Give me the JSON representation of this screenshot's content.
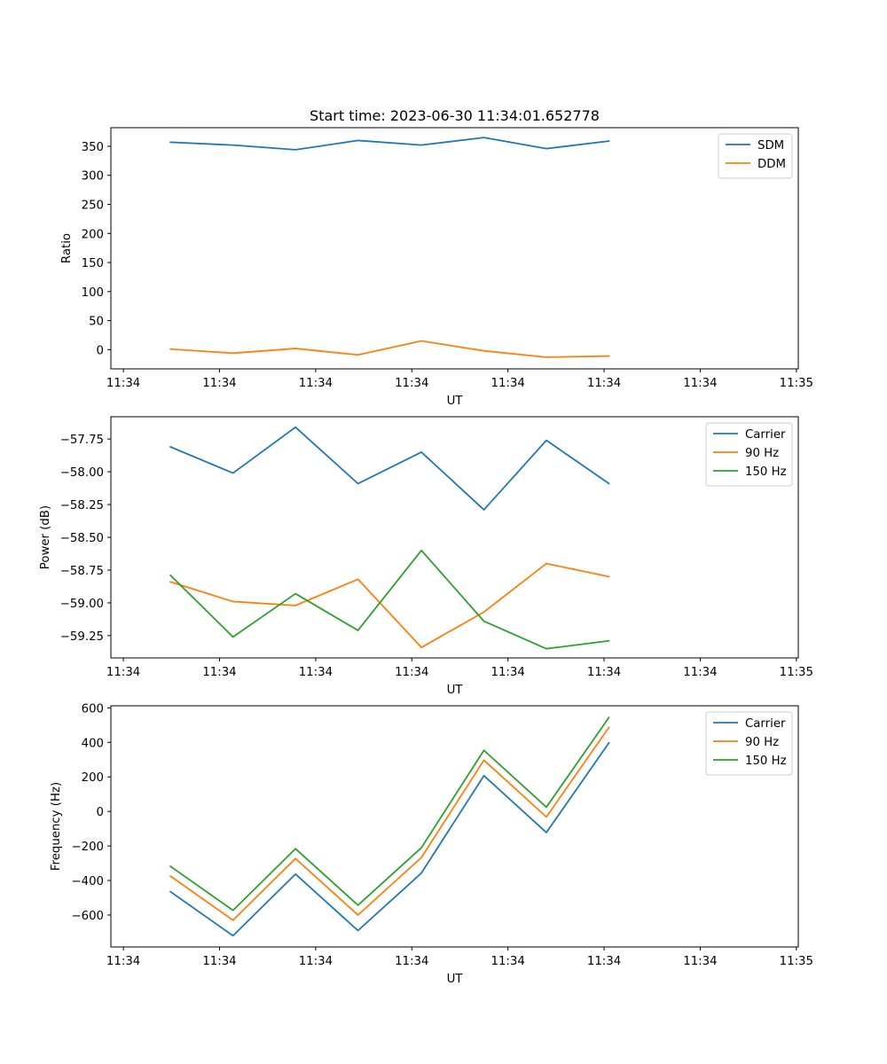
{
  "figure_title": "Start time: 2023-06-30 11:34:01.652778",
  "colors": {
    "blue": "#1f77b4",
    "orange": "#ff7f0e",
    "green": "#2ca02c"
  },
  "chart_data": [
    {
      "type": "line",
      "title": "Start time: 2023-06-30 11:34:01.652778",
      "xlabel": "UT",
      "ylabel": "Ratio",
      "x_tick_labels": [
        "11:34",
        "11:34",
        "11:34",
        "11:34",
        "11:34",
        "11:34",
        "11:34",
        "11:35"
      ],
      "x_tick_values": [
        0,
        1,
        2,
        3,
        4,
        5,
        6,
        7
      ],
      "xlim": [
        -0.13,
        7.02
      ],
      "x": [
        0.49,
        1.14,
        1.79,
        2.44,
        3.1,
        3.75,
        4.4,
        5.05
      ],
      "ylim": [
        -33,
        382
      ],
      "y_ticks": [
        0,
        50,
        100,
        150,
        200,
        250,
        300,
        350
      ],
      "legend_position": "upper right",
      "series": [
        {
          "name": "SDM",
          "color": "#1f77b4",
          "values": [
            357,
            352,
            344,
            360,
            352,
            365,
            346,
            359
          ]
        },
        {
          "name": "DDM",
          "color": "#ff7f0e",
          "values": [
            1,
            -6,
            2,
            -9,
            15,
            -2,
            -13,
            -11
          ]
        }
      ]
    },
    {
      "type": "line",
      "xlabel": "UT",
      "ylabel": "Power (dB)",
      "x_tick_labels": [
        "11:34",
        "11:34",
        "11:34",
        "11:34",
        "11:34",
        "11:34",
        "11:34",
        "11:35"
      ],
      "x_tick_values": [
        0,
        1,
        2,
        3,
        4,
        5,
        6,
        7
      ],
      "xlim": [
        -0.13,
        7.02
      ],
      "x": [
        0.49,
        1.14,
        1.79,
        2.44,
        3.1,
        3.75,
        4.4,
        5.05
      ],
      "ylim": [
        -59.42,
        -57.58
      ],
      "y_ticks": [
        -59.25,
        -59.0,
        -58.75,
        -58.5,
        -58.25,
        -58.0,
        -57.75
      ],
      "y_tick_labels": [
        "−59.25",
        "−59.00",
        "−58.75",
        "−58.50",
        "−58.25",
        "−58.00",
        "−57.75"
      ],
      "legend_position": "upper right",
      "series": [
        {
          "name": "Carrier",
          "color": "#1f77b4",
          "values": [
            -57.81,
            -58.01,
            -57.66,
            -58.09,
            -57.85,
            -58.29,
            -57.76,
            -58.09
          ]
        },
        {
          "name": "90 Hz",
          "color": "#ff7f0e",
          "values": [
            -58.84,
            -58.99,
            -59.02,
            -58.82,
            -59.34,
            -59.07,
            -58.7,
            -58.8
          ]
        },
        {
          "name": "150 Hz",
          "color": "#2ca02c",
          "values": [
            -58.79,
            -59.26,
            -58.93,
            -59.21,
            -58.6,
            -59.14,
            -59.35,
            -59.29
          ]
        }
      ]
    },
    {
      "type": "line",
      "xlabel": "UT",
      "ylabel": "Frequency (Hz)",
      "x_tick_labels": [
        "11:34",
        "11:34",
        "11:34",
        "11:34",
        "11:34",
        "11:34",
        "11:34",
        "11:35"
      ],
      "x_tick_values": [
        0,
        1,
        2,
        3,
        4,
        5,
        6,
        7
      ],
      "xlim": [
        -0.13,
        7.02
      ],
      "x": [
        0.49,
        1.14,
        1.79,
        2.44,
        3.1,
        3.75,
        4.4,
        5.05
      ],
      "ylim": [
        -785,
        612
      ],
      "y_ticks": [
        -600,
        -400,
        -200,
        0,
        200,
        400,
        600
      ],
      "y_tick_labels": [
        "−600",
        "−400",
        "−200",
        "0",
        "200",
        "400",
        "600"
      ],
      "legend_position": "upper right",
      "series": [
        {
          "name": "Carrier",
          "color": "#1f77b4",
          "values": [
            -465,
            -720,
            -363,
            -690,
            -357,
            207,
            -122,
            397
          ]
        },
        {
          "name": "90 Hz",
          "color": "#ff7f0e",
          "values": [
            -375,
            -630,
            -273,
            -600,
            -267,
            297,
            -32,
            487
          ]
        },
        {
          "name": "150 Hz",
          "color": "#2ca02c",
          "values": [
            -318,
            -573,
            -216,
            -543,
            -210,
            354,
            25,
            544
          ]
        }
      ]
    }
  ]
}
